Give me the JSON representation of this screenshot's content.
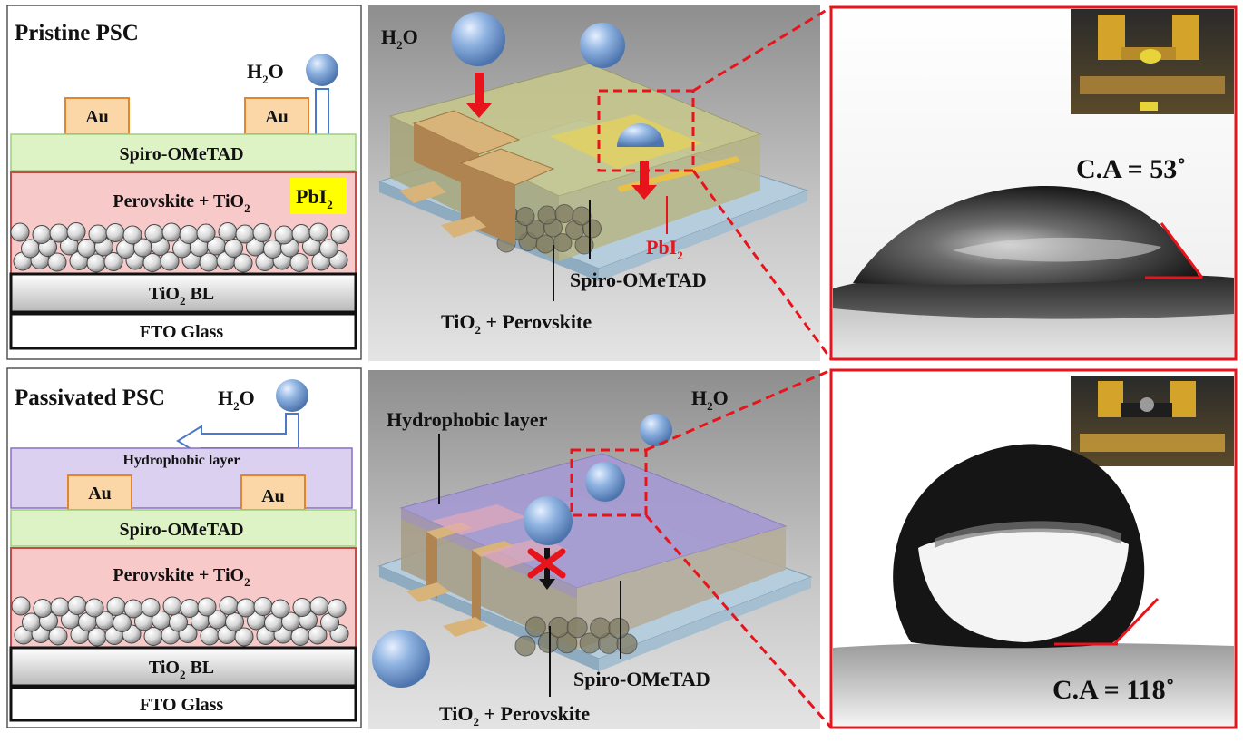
{
  "top": {
    "schematic": {
      "title": "Pristine PSC",
      "water": "H",
      "water_sub": "2",
      "water_o": "O",
      "au": "Au",
      "spiro": "Spiro-OMeTAD",
      "perovskite": "Perovskite + TiO",
      "perovskite_sub": "2",
      "pbi": "PbI",
      "pbi_sub": "2",
      "tio2_bl": "TiO",
      "tio2_bl_sub": "2",
      "tio2_bl_suffix": " BL",
      "fto": "FTO Glass"
    },
    "render": {
      "water": "H",
      "water_sub": "2",
      "water_o": "O",
      "pbi": "PbI",
      "pbi_sub": "2",
      "spiro": "Spiro-OMeTAD",
      "tio_label": "TiO",
      "tio_label_sub": "2",
      "tio_label_suffix": " + Perovskite"
    },
    "photo": {
      "contact_angle": "C.A = 53˚"
    }
  },
  "bottom": {
    "schematic": {
      "title": "Passivated PSC",
      "water": "H",
      "water_sub": "2",
      "water_o": "O",
      "hydrophobic": "Hydrophobic layer",
      "au": "Au",
      "spiro": "Spiro-OMeTAD",
      "perovskite": "Perovskite + TiO",
      "perovskite_sub": "2",
      "tio2_bl": "TiO",
      "tio2_bl_sub": "2",
      "tio2_bl_suffix": " BL",
      "fto": "FTO Glass"
    },
    "render": {
      "water": "H",
      "water_sub": "2",
      "water_o": "O",
      "hydrophobic": "Hydrophobic layer",
      "spiro": "Spiro-OMeTAD",
      "tio_label": "TiO",
      "tio_label_sub": "2",
      "tio_label_suffix": " + Perovskite"
    },
    "photo": {
      "contact_angle": "C.A = 118˚"
    }
  },
  "colors": {
    "spiro": "#ddf3c6",
    "perovskite": "#f8c9c9",
    "hydrophobic": "#dcd0f0",
    "au": "#fbd7a8",
    "au_border": "#e1852f",
    "pbi_highlight": "#ffff00",
    "zoom_red": "#e8141c",
    "droplet": "#8eb2e0"
  }
}
